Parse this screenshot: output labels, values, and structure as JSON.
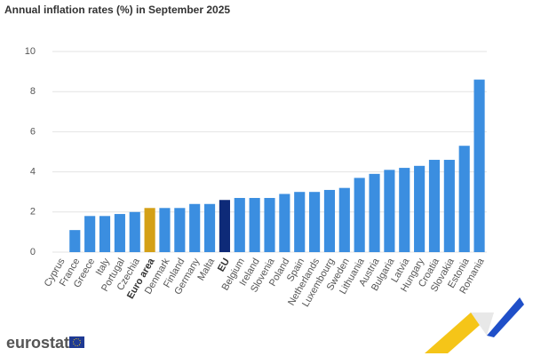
{
  "chart_data": {
    "type": "bar",
    "title": "Annual inflation rates (%) in September 2025",
    "categories": [
      "Cyprus",
      "France",
      "Greece",
      "Italy",
      "Portugal",
      "Czechia",
      "Euro area",
      "Denmark",
      "Finland",
      "Germany",
      "Malta",
      "EU",
      "Belgium",
      "Ireland",
      "Slovenia",
      "Poland",
      "Spain",
      "Netherlands",
      "Luxembourg",
      "Sweden",
      "Lithuania",
      "Austria",
      "Bulgaria",
      "Latvia",
      "Hungary",
      "Croatia",
      "Slovakia",
      "Estonia",
      "Romania"
    ],
    "values": [
      0,
      1.1,
      1.8,
      1.8,
      1.9,
      2.0,
      2.2,
      2.2,
      2.2,
      2.4,
      2.4,
      2.6,
      2.7,
      2.7,
      2.7,
      2.9,
      3.0,
      3.0,
      3.1,
      3.2,
      3.7,
      3.9,
      4.1,
      4.2,
      4.3,
      4.6,
      4.6,
      5.3,
      8.6
    ],
    "color": "#3b8ee0",
    "colors": [
      "#3b8ee0",
      "#3b8ee0",
      "#3b8ee0",
      "#3b8ee0",
      "#3b8ee0",
      "#3b8ee0",
      "#d4a017",
      "#3b8ee0",
      "#3b8ee0",
      "#3b8ee0",
      "#3b8ee0",
      "#0e2a78",
      "#3b8ee0",
      "#3b8ee0",
      "#3b8ee0",
      "#3b8ee0",
      "#3b8ee0",
      "#3b8ee0",
      "#3b8ee0",
      "#3b8ee0",
      "#3b8ee0",
      "#3b8ee0",
      "#3b8ee0",
      "#3b8ee0",
      "#3b8ee0",
      "#3b8ee0",
      "#3b8ee0",
      "#3b8ee0",
      "#3b8ee0"
    ],
    "ylim": [
      0,
      10
    ],
    "yticks": [
      0,
      2,
      4,
      6,
      8,
      10
    ],
    "grid": true
  },
  "footer": {
    "logo": "eurostat"
  }
}
